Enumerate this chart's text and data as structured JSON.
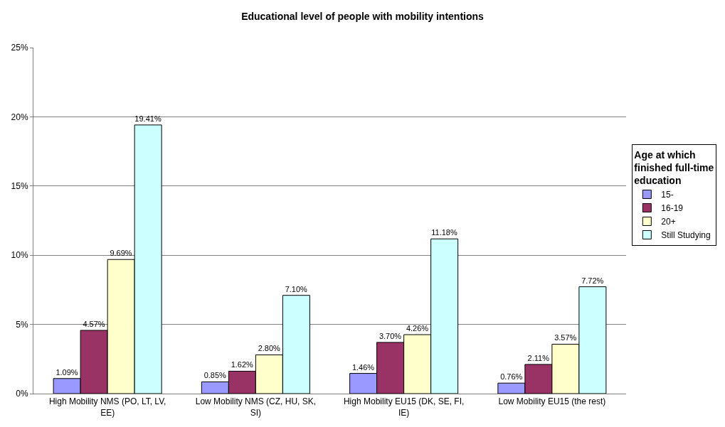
{
  "chart_data": {
    "type": "bar",
    "title": "Educational level of people with mobility intentions",
    "legend_title": "Age at which finished full-time education",
    "categories": [
      "High Mobility NMS (PO, LT, LV, EE)",
      "Low Mobility NMS (CZ, HU, SK, SI)",
      "High Mobility EU15 (DK, SE, FI, IE)",
      "Low Mobility EU15 (the rest)"
    ],
    "series": [
      {
        "name": "15-",
        "color": "#9999ff",
        "values": [
          1.09,
          0.85,
          1.46,
          0.76
        ],
        "value_labels": [
          "1.09%",
          "0.85%",
          "1.46%",
          "0.76%"
        ]
      },
      {
        "name": "16-19",
        "color": "#993366",
        "values": [
          4.57,
          1.62,
          3.7,
          2.11
        ],
        "value_labels": [
          "4.57%",
          "1.62%",
          "3.70%",
          "2.11%"
        ]
      },
      {
        "name": "20+",
        "color": "#ffffcc",
        "values": [
          9.69,
          2.8,
          4.26,
          3.57
        ],
        "value_labels": [
          "9.69%",
          "2.80%",
          "4.26%",
          "3.57%"
        ]
      },
      {
        "name": "Still Studying",
        "color": "#ccffff",
        "values": [
          19.41,
          7.1,
          11.18,
          7.72
        ],
        "value_labels": [
          "19.41%",
          "7.10%",
          "11.18%",
          "7.72%"
        ]
      }
    ],
    "ylim": [
      0,
      25
    ],
    "yticks": [
      {
        "value": 0,
        "label": "0%"
      },
      {
        "value": 5,
        "label": "5%"
      },
      {
        "value": 10,
        "label": "10%"
      },
      {
        "value": 15,
        "label": "15%"
      },
      {
        "value": 20,
        "label": "20%"
      },
      {
        "value": 25,
        "label": "25%"
      }
    ],
    "grid": "y",
    "legend": "right"
  }
}
